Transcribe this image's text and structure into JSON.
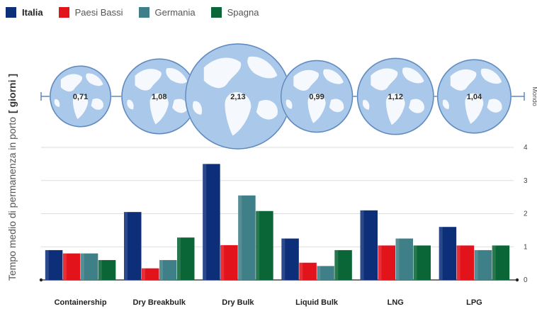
{
  "chart_data": {
    "type": "bar",
    "categories": [
      "Containership",
      "Dry Breakbulk",
      "Dry Bulk",
      "Liquid Bulk",
      "LNG",
      "LPG"
    ],
    "series": [
      {
        "name": "Italia",
        "color": "#0d2f7a",
        "values": [
          0.9,
          2.05,
          3.5,
          1.25,
          2.1,
          1.6
        ]
      },
      {
        "name": "Paesi Bassi",
        "color": "#e3131c",
        "values": [
          0.8,
          0.35,
          1.05,
          0.52,
          1.04,
          1.04
        ]
      },
      {
        "name": "Germania",
        "color": "#3f7f87",
        "values": [
          0.8,
          0.6,
          2.55,
          0.42,
          1.25,
          0.9
        ]
      },
      {
        "name": "Spagna",
        "color": "#0a6637",
        "values": [
          0.6,
          1.28,
          2.08,
          0.9,
          1.04,
          1.04
        ]
      }
    ],
    "ylabel": "Tempo medio di permanenza in porto",
    "ylabel_unit": "[ giorni ]",
    "ylim": [
      0,
      4
    ],
    "yticks": [
      "0",
      "1",
      "2",
      "3",
      "4"
    ],
    "grid": true,
    "legend_position": "top-left",
    "legend_bold": "Italia",
    "world": {
      "label": "Mondo",
      "values": [
        0.71,
        1.08,
        2.13,
        0.99,
        1.12,
        1.04
      ],
      "value_labels": [
        "0,71",
        "1,08",
        "2,13",
        "0,99",
        "1,12",
        "1,04"
      ]
    }
  },
  "colors": {
    "globe_ocean": "#a9c8ea",
    "globe_edge": "#5f89bd",
    "globe_land": "#ffffff",
    "axis": "#5f89bd",
    "grid": "#dddddd"
  }
}
